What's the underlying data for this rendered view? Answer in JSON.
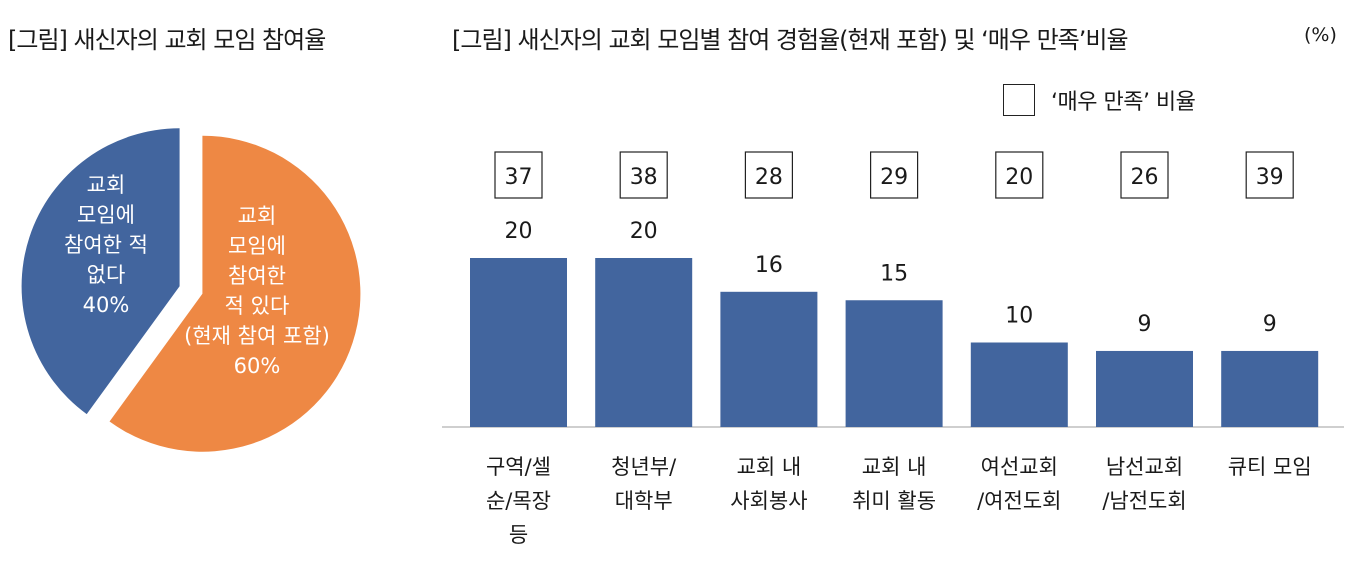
{
  "pie_title": "[그림] 새신자의 교회 모임 참여율",
  "bar_title": "[그림] 새신자의 교회 모임별 참여 경험율(현재 포함) 및 ‘매우 만족’비율",
  "unit_label": "(%)",
  "legend_label": "‘매우 만족’ 비율",
  "chart_data": [
    {
      "type": "pie",
      "title": "[그림] 새신자의 교회 모임 참여율",
      "slices": [
        {
          "label_lines": [
            "교회",
            "모임에",
            "참여한",
            "적 있다",
            "(현재 참여 포함)",
            "60%"
          ],
          "value": 60,
          "color": "#EE8844"
        },
        {
          "label_lines": [
            "교회",
            "모임에",
            "참여한 적",
            "없다",
            "40%"
          ],
          "value": 40,
          "color": "#42659E"
        }
      ]
    },
    {
      "type": "bar",
      "title": "[그림] 새신자의 교회 모임별 참여 경험율(현재 포함) 및 ‘매우 만족’비율",
      "unit": "(%)",
      "categories": [
        [
          "구역/셀",
          "순/목장",
          "등"
        ],
        [
          "청년부/",
          "대학부"
        ],
        [
          "교회 내",
          "사회봉사"
        ],
        [
          "교회 내",
          "취미 활동"
        ],
        [
          "여선교회",
          "/여전도회"
        ],
        [
          "남선교회",
          "/남전도회"
        ],
        [
          "큐티 모임"
        ]
      ],
      "values": [
        20,
        20,
        16,
        15,
        10,
        9,
        9
      ],
      "very_satisfied": [
        37,
        38,
        28,
        29,
        20,
        26,
        39
      ],
      "bar_color": "#42659E",
      "legend": "‘매우 만족’ 비율",
      "ylim": [
        0,
        20
      ]
    }
  ]
}
